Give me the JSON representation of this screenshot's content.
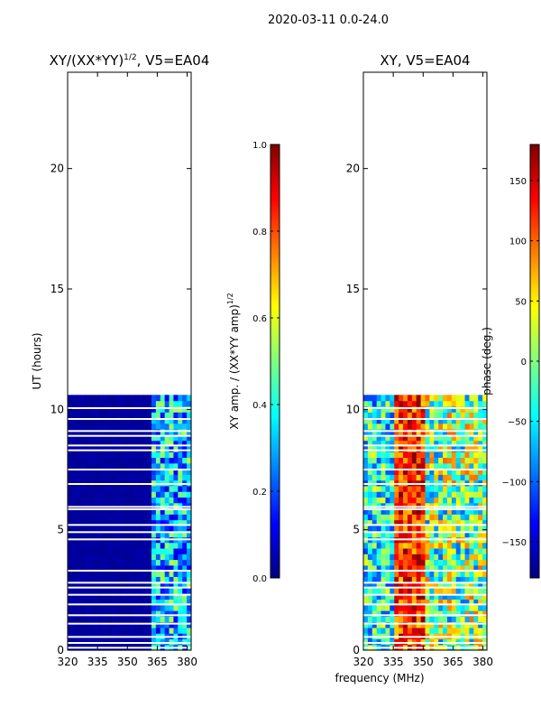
{
  "suptitle": "2020-03-11 0.0-24.0",
  "colors": {
    "jet": [
      "#00007f",
      "#0000ff",
      "#007fff",
      "#00ffff",
      "#7fff7f",
      "#ffff00",
      "#ff7f00",
      "#ff0000",
      "#7f0000"
    ],
    "frame": "#000000",
    "gap": "#ffffff"
  },
  "chart_data": [
    {
      "type": "heatmap",
      "title_main": "XY/(XX*YY)",
      "title_sup": "1/2",
      "title_tail": ", V5=EA04",
      "xlabel": "",
      "ylabel": "UT (hours)",
      "xlim": [
        320,
        382
      ],
      "ylim": [
        0,
        24
      ],
      "xticks": [
        320,
        335,
        350,
        365,
        380
      ],
      "yticks": [
        0,
        5,
        10,
        15,
        20
      ],
      "data_ut_range": [
        0,
        10.6
      ],
      "band_low_mhz": [
        320,
        363
      ],
      "band_low_value": 0.02,
      "band_high_mhz": [
        363,
        382
      ],
      "band_high_range": [
        0.1,
        0.55
      ],
      "colorbar": {
        "label_main": "XY amp. / (XX*YY amp)",
        "label_sup": "1/2",
        "range": [
          0.0,
          1.0
        ],
        "ticks": [
          "0.0",
          "0.2",
          "0.4",
          "0.6",
          "0.8",
          "1.0"
        ],
        "tick_values": [
          0.0,
          0.2,
          0.4,
          0.6,
          0.8,
          1.0
        ]
      }
    },
    {
      "type": "heatmap",
      "title": "XY, V5=EA04",
      "xlabel": "frequency (MHz)",
      "ylabel": "",
      "xlim": [
        320,
        382
      ],
      "ylim": [
        0,
        24
      ],
      "xticks": [
        320,
        335,
        350,
        365,
        380
      ],
      "yticks": [
        0,
        5,
        10,
        15,
        20
      ],
      "data_ut_range": [
        0,
        10.6
      ],
      "value_range": [
        -180,
        180
      ],
      "colorbar": {
        "label": "phase (deg.)",
        "range": [
          -180,
          180
        ],
        "ticks": [
          "−150",
          "−100",
          "−50",
          "0",
          "50",
          "100",
          "150"
        ],
        "tick_values": [
          -150,
          -100,
          -50,
          0,
          50,
          100,
          150
        ]
      }
    }
  ],
  "gap_hours": [
    0.1,
    0.3,
    0.55,
    1.1,
    1.45,
    1.9,
    2.3,
    2.6,
    2.8,
    3.3,
    4.6,
    4.9,
    5.2,
    5.85,
    5.95,
    6.9,
    7.5,
    8.3,
    8.5,
    8.9,
    9.1,
    9.6,
    10.05
  ]
}
